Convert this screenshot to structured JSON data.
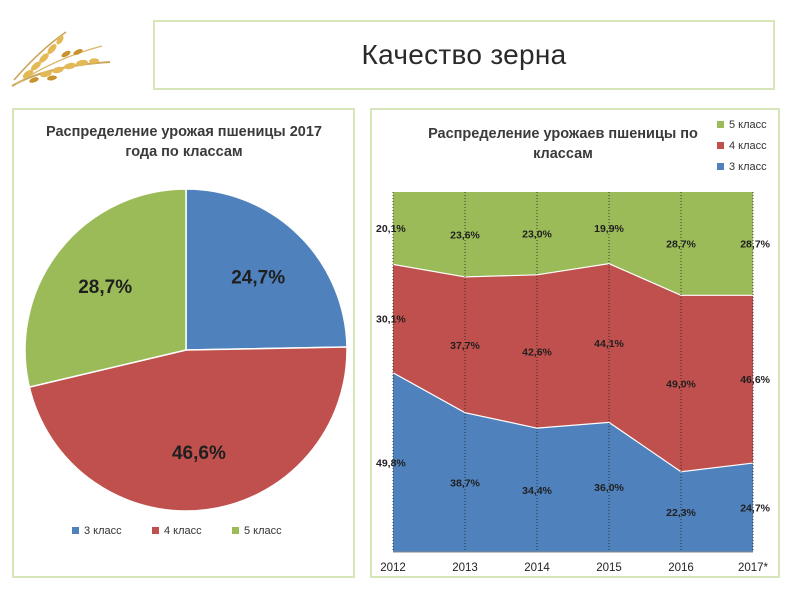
{
  "page": {
    "title": "Качество зерна"
  },
  "colors": {
    "class3": "#4f81bd",
    "class4": "#c0504d",
    "class5": "#9bbb59",
    "frame": "#d6e6b8"
  },
  "chart_data": [
    {
      "type": "pie",
      "title": "Распределение урожая пшеницы 2017 года по классам",
      "slices": [
        {
          "label": "3 класс",
          "value": 24.7,
          "text": "24,7%"
        },
        {
          "label": "4 класс",
          "value": 46.6,
          "text": "46,6%"
        },
        {
          "label": "5 класс",
          "value": 28.7,
          "text": "28,7%"
        }
      ],
      "legend": {
        "placement": "bottom",
        "entries": [
          "3 класс",
          "4 класс",
          "5 класс"
        ]
      }
    },
    {
      "type": "area",
      "stacked": "percent",
      "title": "Распределение урожаев пшеницы по классам",
      "categories": [
        "2012",
        "2013",
        "2014",
        "2015",
        "2016",
        "2017*"
      ],
      "series": [
        {
          "name": "3 класс",
          "values": [
            49.8,
            38.7,
            34.4,
            36.0,
            22.3,
            24.7
          ],
          "labels": [
            "49,8%",
            "38,7%",
            "34,4%",
            "36,0%",
            "22,3%",
            "24,7%"
          ]
        },
        {
          "name": "4 класс",
          "values": [
            30.1,
            37.7,
            42.6,
            44.1,
            49.0,
            46.6
          ],
          "labels": [
            "30,1%",
            "37,7%",
            "42,6%",
            "44,1%",
            "49,0%",
            "46,6%"
          ]
        },
        {
          "name": "5 класс",
          "values": [
            20.1,
            23.6,
            23.0,
            19.9,
            28.7,
            28.7
          ],
          "labels": [
            "20,1%",
            "23,6%",
            "23,0%",
            "19,9%",
            "28,7%",
            "28,7%"
          ]
        }
      ],
      "legend": {
        "placement": "top-right",
        "entries": [
          "5 класс",
          "4 класс",
          "3 класс"
        ]
      },
      "ylim": [
        0,
        100
      ]
    }
  ]
}
